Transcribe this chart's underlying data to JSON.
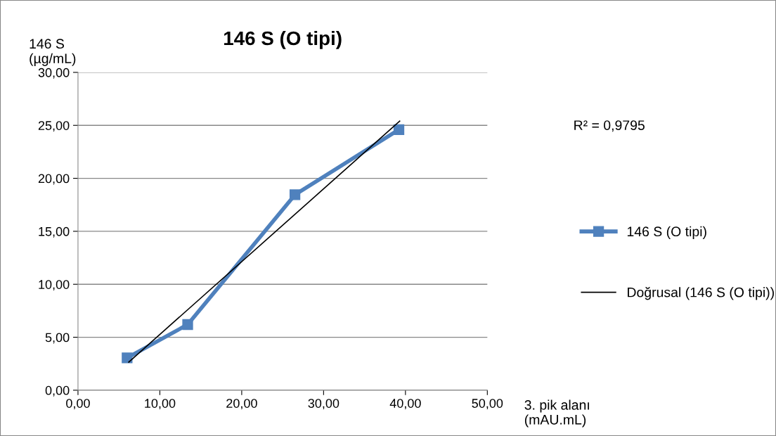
{
  "chart_data": {
    "type": "line",
    "title": "146 S (O tipi)",
    "xlabel": "3. pik alanı\n(mAU.mL)",
    "ylabel": "146 S\n(µg/mL)",
    "series": [
      {
        "name": "146 S (O tipi)",
        "color": "#4f81bd",
        "x": [
          6.0,
          13.4,
          26.5,
          39.2
        ],
        "values": [
          3.05,
          6.2,
          18.45,
          24.6
        ],
        "marker": "square"
      },
      {
        "name": "Doğrusal (146 S (O tipi))",
        "color": "#000000",
        "x": [
          6.2,
          39.3
        ],
        "values": [
          2.65,
          25.4
        ],
        "marker": "none"
      }
    ],
    "annotations": [
      "R² = 0,9795"
    ],
    "xlim": [
      0,
      50
    ],
    "xticks": [
      {
        "value": 0,
        "label": "0,00"
      },
      {
        "value": 10,
        "label": "10,00"
      },
      {
        "value": 20,
        "label": "20,00"
      },
      {
        "value": 30,
        "label": "30,00"
      },
      {
        "value": 40,
        "label": "40,00"
      },
      {
        "value": 50,
        "label": "50,00"
      }
    ],
    "ylim": [
      0,
      30
    ],
    "yticks": [
      {
        "value": 0,
        "label": "0,00"
      },
      {
        "value": 5,
        "label": "5,00"
      },
      {
        "value": 10,
        "label": "10,00"
      },
      {
        "value": 15,
        "label": "15,00"
      },
      {
        "value": 20,
        "label": "20,00"
      },
      {
        "value": 25,
        "label": "25,00"
      },
      {
        "value": 30,
        "label": "30,00"
      }
    ],
    "grid": "y",
    "legend": "right"
  }
}
